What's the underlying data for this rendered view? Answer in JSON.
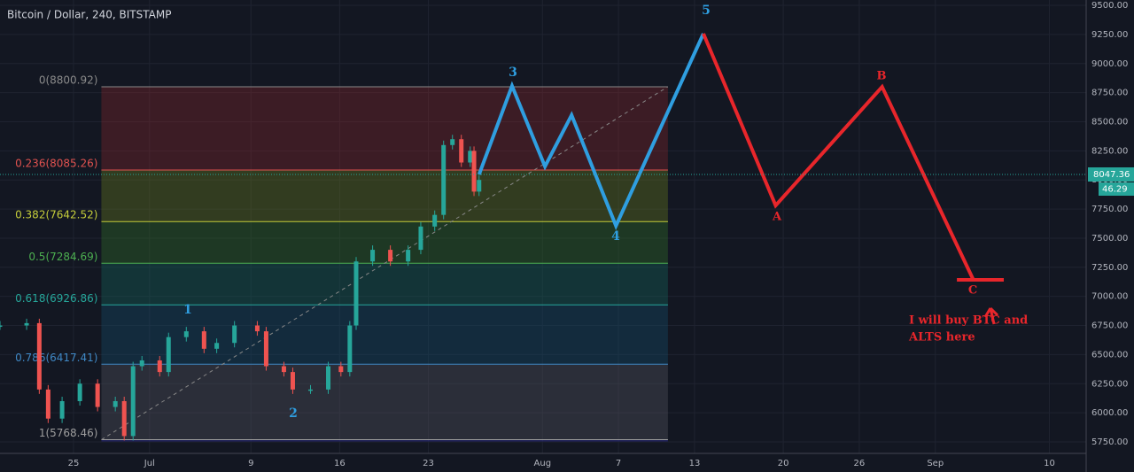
{
  "chart_data": {
    "type": "candlestick-line",
    "title": "Bitcoin / Dollar, 240, BITSTAMP",
    "xlim": [
      -5.8,
      79.9
    ],
    "ylim": [
      5651,
      9546
    ],
    "xticks": [
      {
        "value": 0,
        "label": "25"
      },
      {
        "value": 6,
        "label": "Jul"
      },
      {
        "value": 14,
        "label": "9"
      },
      {
        "value": 21,
        "label": "16"
      },
      {
        "value": 28,
        "label": "23"
      },
      {
        "value": 37,
        "label": "Aug"
      },
      {
        "value": 43,
        "label": "7"
      },
      {
        "value": 49,
        "label": "13"
      },
      {
        "value": 56,
        "label": "20"
      },
      {
        "value": 62,
        "label": "26"
      },
      {
        "value": 68,
        "label": "Sep"
      },
      {
        "value": 77,
        "label": "10"
      }
    ],
    "yticks": [
      {
        "value": 5750,
        "label": "5750.00"
      },
      {
        "value": 6000,
        "label": "6000.00"
      },
      {
        "value": 6250,
        "label": "6250.00"
      },
      {
        "value": 6500,
        "label": "6500.00"
      },
      {
        "value": 6750,
        "label": "6750.00"
      },
      {
        "value": 7000,
        "label": "7000.00"
      },
      {
        "value": 7250,
        "label": "7250.00"
      },
      {
        "value": 7500,
        "label": "7500.00"
      },
      {
        "value": 7750,
        "label": "7750.00"
      },
      {
        "value": 8000,
        "label": "8000.00"
      },
      {
        "value": 8250,
        "label": "8250.00"
      },
      {
        "value": 8500,
        "label": "8500.00"
      },
      {
        "value": 8750,
        "label": "8750.00"
      },
      {
        "value": 9000,
        "label": "9000.00"
      },
      {
        "value": 9250,
        "label": "9250.00"
      },
      {
        "value": 9500,
        "label": "9500.00"
      }
    ],
    "price": {
      "x": [
        -5.8,
        -3.7,
        -2.7,
        -2,
        -0.9,
        0.5,
        1.9,
        3.3,
        4,
        4.7,
        5.4,
        6.8,
        7.5,
        8.9,
        10.3,
        11.3,
        12.7,
        14.5,
        15.2,
        16.6,
        17.3,
        18.7,
        20.1,
        21.1,
        21.8,
        22.3,
        23.6,
        25,
        26.4,
        27.4,
        28.5,
        29.2,
        29.9,
        30.6,
        31.3,
        31.6,
        32
      ],
      "values": [
        6750,
        6770,
        6200,
        5950,
        6100,
        6250,
        6050,
        6100,
        5800,
        6400,
        6450,
        6350,
        6650,
        6700,
        6550,
        6600,
        6750,
        6700,
        6400,
        6350,
        6200,
        6200,
        6400,
        6350,
        6750,
        7300,
        7400,
        7300,
        7400,
        7600,
        7700,
        8300,
        8350,
        8150,
        8250,
        7900,
        8000
      ],
      "up_color": "#26a69a",
      "down_color": "#ef5350"
    },
    "fib": {
      "x": [
        2.2,
        46.9
      ],
      "levels": [
        {
          "price": 8800.92,
          "label": "0(8800.92)",
          "color": "#8a8a8a",
          "fill": "rgba(150,40,45,0.32)"
        },
        {
          "price": 8085.26,
          "label": "0.236(8085.26)",
          "color": "#e0524f",
          "fill": "rgba(110,130,30,0.35)"
        },
        {
          "price": 7642.52,
          "label": "0.382(7642.52)",
          "color": "#c4cc3a",
          "fill": "rgba(50,110,40,0.38)"
        },
        {
          "price": 7284.69,
          "label": "0.5(7284.69)",
          "color": "#4caf50",
          "fill": "rgba(20,100,90,0.38)"
        },
        {
          "price": 6926.86,
          "label": "0.618(6926.86)",
          "color": "#26a69a",
          "fill": "rgba(20,75,105,0.38)"
        },
        {
          "price": 6417.41,
          "label": "0.786(6417.41)",
          "color": "#3f88c5",
          "fill": "rgba(85,85,95,0.38)"
        },
        {
          "price": 5768.46,
          "label": "1(5768.46)",
          "color": "#9e9e9e",
          "fill": "rgba(40,40,150,0.45)"
        }
      ]
    },
    "wave_up": {
      "x": [
        32,
        34.6,
        37.2,
        39.3,
        42.8,
        49.7
      ],
      "values": [
        8047,
        8808,
        8116,
        8557,
        7606,
        9257
      ],
      "color": "#2f9ee0"
    },
    "wave_down": {
      "x": [
        49.7,
        55.4,
        63.8,
        71
      ],
      "values": [
        9257,
        7781,
        8800,
        7142
      ],
      "color": "#e8262b"
    },
    "target_line": {
      "x": [
        69.7,
        73.4
      ],
      "value": 7142
    },
    "wave_labels_blue": [
      "1",
      "2",
      "3",
      "4",
      "5"
    ],
    "wave_labels_red": [
      "A",
      "B",
      "C"
    ],
    "annotation": [
      "I will buy BTC and",
      "ALTS here"
    ],
    "last_price": {
      "value": 8047.36,
      "label": "8047.36",
      "countdown": "46.29"
    }
  }
}
